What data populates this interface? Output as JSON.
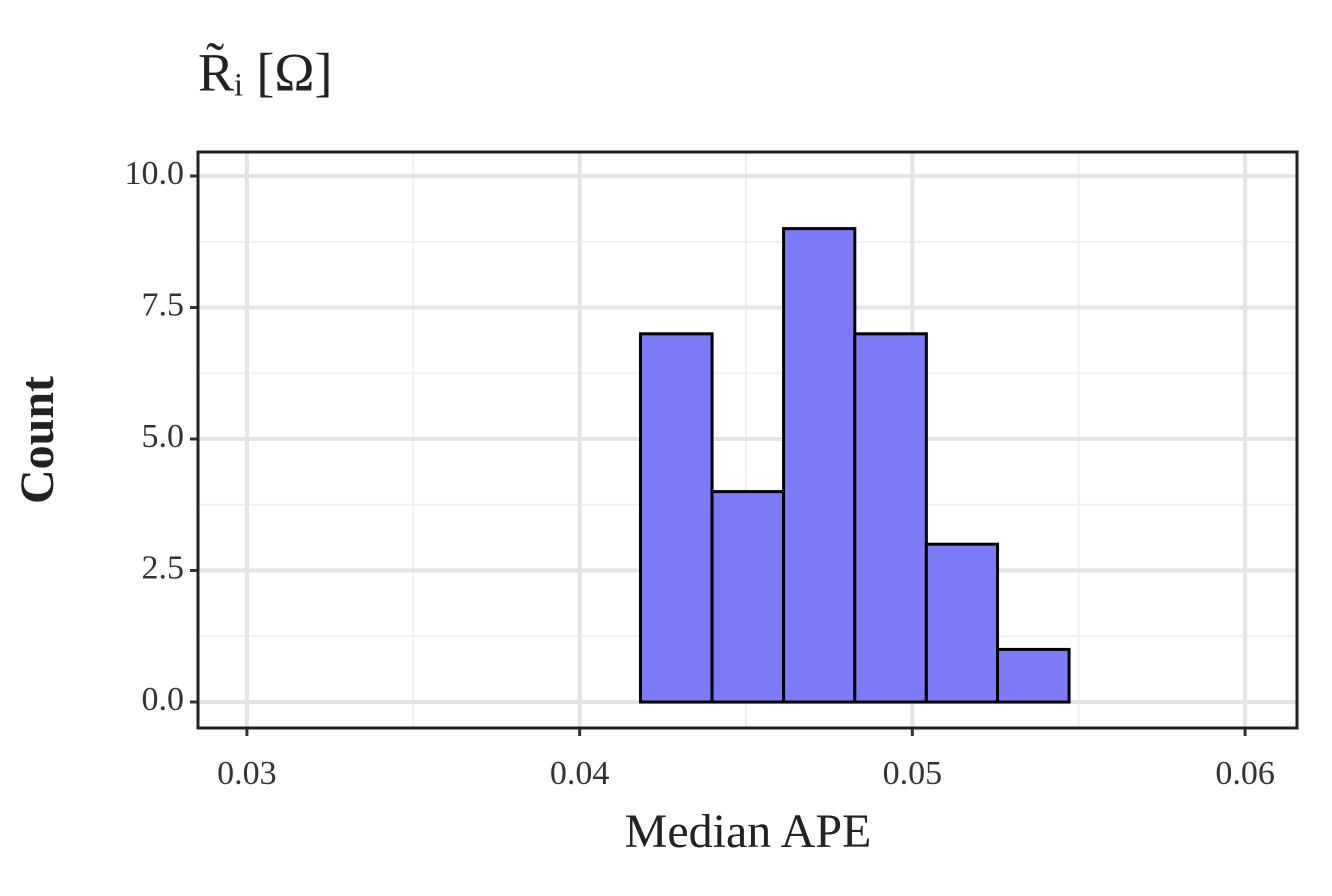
{
  "chart_data": {
    "type": "histogram",
    "title": "R̃ᵢ [Ω]",
    "x_label": "Median APE",
    "y_label": "Count",
    "bins": [
      0.0311,
      0.03325,
      0.0354,
      0.03754,
      0.03969,
      0.04183,
      0.04398,
      0.04613,
      0.04827,
      0.05042,
      0.05256,
      0.05471,
      0.05686,
      0.059
    ],
    "values": [
      0,
      0,
      0,
      0,
      0,
      7,
      4,
      9,
      7,
      3,
      1,
      0,
      0
    ],
    "color": "#7b7bf7",
    "edgecolor": "#000000",
    "xlim": [
      0.02853,
      0.06156
    ],
    "xticks": [
      0.03,
      0.04,
      0.05,
      0.06
    ],
    "minor_xticks": [
      0.035,
      0.045,
      0.055
    ],
    "ylim": [
      -0.494,
      10.456
    ],
    "yticks": [
      {
        "value": 0,
        "label": "0.0"
      },
      2.5,
      {
        "value": 5,
        "label": "5.0"
      },
      7.5,
      {
        "value": 10,
        "label": "10.0"
      }
    ],
    "minor_yticks": [
      1.25,
      3.75,
      6.25,
      8.75
    ],
    "grid": true
  }
}
